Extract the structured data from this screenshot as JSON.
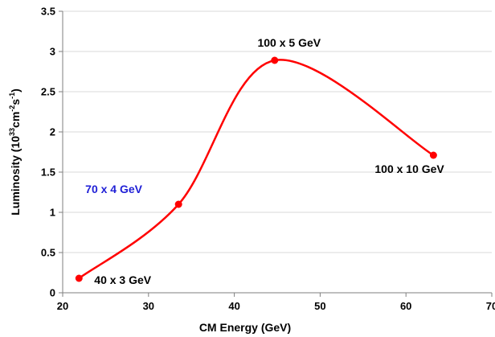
{
  "chart_data": {
    "type": "line",
    "title": "",
    "xlabel": "CM Energy (GeV)",
    "ylabel_parts": [
      "Luminosity (10",
      "33",
      "cm",
      "-2",
      "s",
      "-1",
      ")"
    ],
    "xlim": [
      20,
      70
    ],
    "ylim": [
      0,
      3.5
    ],
    "x_ticks": [
      "20",
      "30",
      "40",
      "50",
      "60",
      "70"
    ],
    "y_ticks": [
      "0",
      "0.5",
      "1",
      "1.5",
      "2",
      "2.5",
      "3",
      "3.5"
    ],
    "grid": "horizontal",
    "series": [
      {
        "color": "#ff0000",
        "smooth": true,
        "points": [
          {
            "x": 21.9,
            "y": 0.18,
            "label": "40 x 3 GeV",
            "label_color": "#000000",
            "label_side": "below-right"
          },
          {
            "x": 33.5,
            "y": 1.1,
            "label": "70 x 4 GeV",
            "label_color": "#1f1fd6",
            "label_side": "above-left"
          },
          {
            "x": 44.7,
            "y": 2.89,
            "label": "100 x 5 GeV",
            "label_color": "#000000",
            "label_side": "above"
          },
          {
            "x": 63.2,
            "y": 1.71,
            "label": "100 x 10 GeV",
            "label_color": "#000000",
            "label_side": "below"
          }
        ]
      }
    ]
  }
}
